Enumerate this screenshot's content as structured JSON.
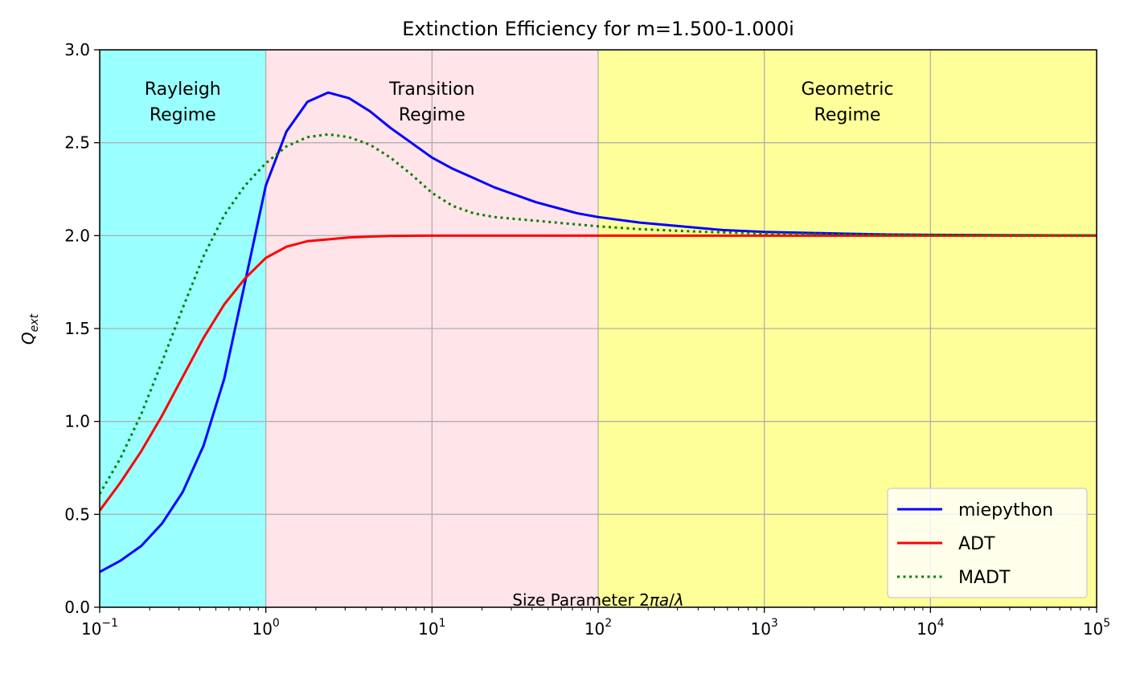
{
  "chart_data": {
    "type": "line",
    "title": "Extinction Efficiency for m=1.500-1.000i",
    "xlabel_prefix": "Size Parameter 2",
    "xlabel_pi": "π",
    "xlabel_a": "a",
    "xlabel_slash": "/",
    "xlabel_lambda": "λ",
    "ylabel_main": "Q",
    "ylabel_sub": "ext",
    "xscale": "log",
    "xlim": [
      0.1,
      100000
    ],
    "ylim": [
      0.0,
      3.0
    ],
    "grid": true,
    "legend_position": "lower-right",
    "x_ticks": [
      {
        "value": 0.1,
        "base": "10",
        "exp": "−1"
      },
      {
        "value": 1,
        "base": "10",
        "exp": "0"
      },
      {
        "value": 10,
        "base": "10",
        "exp": "1"
      },
      {
        "value": 100,
        "base": "10",
        "exp": "2"
      },
      {
        "value": 1000,
        "base": "10",
        "exp": "3"
      },
      {
        "value": 10000,
        "base": "10",
        "exp": "4"
      },
      {
        "value": 100000,
        "base": "10",
        "exp": "5"
      }
    ],
    "y_ticks": [
      {
        "value": 0.0,
        "label": "0.0"
      },
      {
        "value": 0.5,
        "label": "0.5"
      },
      {
        "value": 1.0,
        "label": "1.0"
      },
      {
        "value": 1.5,
        "label": "1.5"
      },
      {
        "value": 2.0,
        "label": "2.0"
      },
      {
        "value": 2.5,
        "label": "2.5"
      },
      {
        "value": 3.0,
        "label": "3.0"
      }
    ],
    "regions": [
      {
        "from": 0.1,
        "to": 1,
        "color": "#99ffff",
        "label_line1": "Rayleigh",
        "label_line2": "Regime",
        "label_x": 0.316
      },
      {
        "from": 1,
        "to": 100,
        "color": "#ffe4e9",
        "label_line1": "Transition",
        "label_line2": "Regime",
        "label_x": 10
      },
      {
        "from": 100,
        "to": 100000,
        "color": "#ffff99",
        "label_line1": "Geometric",
        "label_line2": "Regime",
        "label_x": 3162
      }
    ],
    "series": [
      {
        "name": "miepython",
        "color": "#0000ff",
        "dash": "solid",
        "x": [
          0.1,
          0.133,
          0.178,
          0.237,
          0.316,
          0.422,
          0.562,
          0.75,
          1.0,
          1.33,
          1.78,
          2.37,
          3.16,
          4.22,
          5.62,
          7.5,
          10,
          13.3,
          17.8,
          23.7,
          31.6,
          42.2,
          56.2,
          75,
          100,
          178,
          316,
          562,
          1000,
          1778,
          3162,
          5623,
          10000,
          31623,
          100000
        ],
        "y": [
          0.19,
          0.25,
          0.33,
          0.45,
          0.62,
          0.87,
          1.23,
          1.75,
          2.27,
          2.56,
          2.72,
          2.77,
          2.74,
          2.67,
          2.58,
          2.5,
          2.42,
          2.36,
          2.31,
          2.26,
          2.22,
          2.18,
          2.15,
          2.12,
          2.1,
          2.07,
          2.05,
          2.03,
          2.02,
          2.015,
          2.01,
          2.006,
          2.004,
          2.002,
          2.001
        ]
      },
      {
        "name": "ADT",
        "color": "#ff0000",
        "dash": "solid",
        "x": [
          0.1,
          0.133,
          0.178,
          0.237,
          0.316,
          0.422,
          0.562,
          0.75,
          1.0,
          1.33,
          1.78,
          2.37,
          3.16,
          4.22,
          5.62,
          7.5,
          10,
          100,
          1000,
          10000,
          100000
        ],
        "y": [
          0.52,
          0.67,
          0.84,
          1.03,
          1.24,
          1.45,
          1.63,
          1.77,
          1.88,
          1.94,
          1.97,
          1.98,
          1.99,
          1.995,
          1.998,
          1.999,
          2.0,
          2.0,
          2.0,
          2.0,
          2.0
        ]
      },
      {
        "name": "MADT",
        "color": "#008000",
        "dash": "dotted",
        "x": [
          0.1,
          0.133,
          0.178,
          0.237,
          0.316,
          0.422,
          0.562,
          0.75,
          1.0,
          1.33,
          1.78,
          2.37,
          3.16,
          4.22,
          5.62,
          7.5,
          10,
          13.3,
          17.8,
          23.7,
          31.6,
          42.2,
          56.2,
          75,
          100,
          178,
          316,
          562,
          1000,
          3162,
          10000,
          100000
        ],
        "y": [
          0.61,
          0.8,
          1.04,
          1.32,
          1.61,
          1.89,
          2.11,
          2.27,
          2.39,
          2.48,
          2.53,
          2.545,
          2.53,
          2.49,
          2.42,
          2.33,
          2.23,
          2.16,
          2.12,
          2.1,
          2.09,
          2.08,
          2.07,
          2.06,
          2.05,
          2.035,
          2.025,
          2.017,
          2.012,
          2.006,
          2.003,
          2.001
        ]
      }
    ]
  }
}
